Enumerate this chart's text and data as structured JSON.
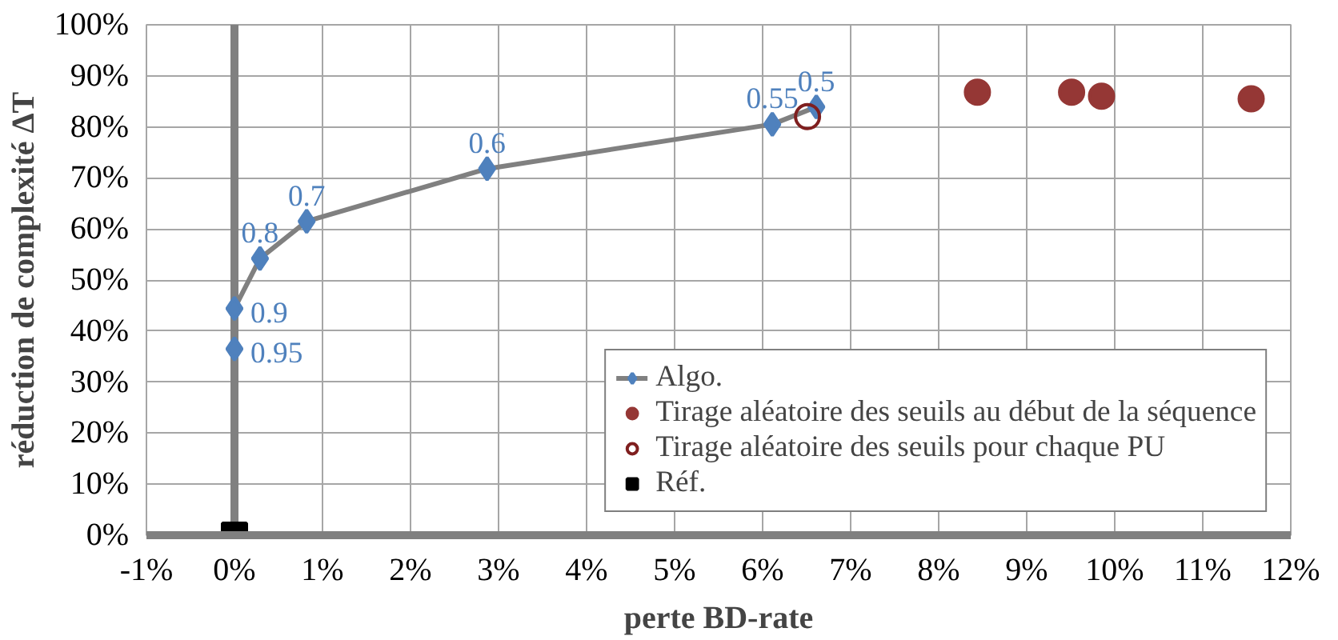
{
  "chart_data": {
    "type": "scatter",
    "xlabel": "perte BD-rate",
    "ylabel": "réduction de complexité ΔT",
    "xlim": [
      -1,
      12
    ],
    "ylim": [
      0,
      100
    ],
    "xticks": [
      {
        "value": -1,
        "label": "-1%"
      },
      {
        "value": 0,
        "label": "0%"
      },
      {
        "value": 1,
        "label": "1%"
      },
      {
        "value": 2,
        "label": "2%"
      },
      {
        "value": 3,
        "label": "3%"
      },
      {
        "value": 4,
        "label": "4%"
      },
      {
        "value": 5,
        "label": "5%"
      },
      {
        "value": 6,
        "label": "6%"
      },
      {
        "value": 7,
        "label": "7%"
      },
      {
        "value": 8,
        "label": "8%"
      },
      {
        "value": 9,
        "label": "9%"
      },
      {
        "value": 10,
        "label": "10%"
      },
      {
        "value": 11,
        "label": "11%"
      },
      {
        "value": 12,
        "label": "12%"
      }
    ],
    "yticks": [
      {
        "value": 0,
        "label": "0%"
      },
      {
        "value": 10,
        "label": "10%"
      },
      {
        "value": 20,
        "label": "20%"
      },
      {
        "value": 30,
        "label": "30%"
      },
      {
        "value": 40,
        "label": "40%"
      },
      {
        "value": 50,
        "label": "50%"
      },
      {
        "value": 60,
        "label": "60%"
      },
      {
        "value": 70,
        "label": "70%"
      },
      {
        "value": 80,
        "label": "80%"
      },
      {
        "value": 90,
        "label": "90%"
      },
      {
        "value": 100,
        "label": "100%"
      }
    ],
    "grid": true,
    "legend": "bottom right",
    "ref_lines": [
      {
        "axis": "x",
        "value": 0,
        "color": "#808080"
      }
    ],
    "series": [
      {
        "name": "Algo.",
        "type": "line",
        "marker": "diamond",
        "color": "#4f81bd",
        "x": [
          0.0,
          0.0,
          0.29,
          0.82,
          2.87,
          6.11,
          6.61
        ],
        "values": [
          36.5,
          44.4,
          54.2,
          61.5,
          71.8,
          80.5,
          83.9
        ]
      },
      {
        "name": "Tirage aléatoire des seuils au début de la séquence",
        "marker": "circle",
        "color": "#953735",
        "x": [
          8.44,
          9.51,
          9.85,
          11.55
        ],
        "values": [
          86.8,
          86.8,
          86.0,
          85.5
        ]
      },
      {
        "name": "Tirage aléatoire des seuils pour chaque PU",
        "marker": "circle_open",
        "color": "#7f1f1f",
        "x": [
          6.51
        ],
        "values": [
          82.0
        ]
      },
      {
        "name": "Réf.",
        "marker": "square",
        "color": "#000000",
        "x": [
          0
        ],
        "values": [
          0
        ]
      }
    ],
    "annotations": [
      {
        "text": "0.95",
        "x": 0.0,
        "y": 36.5
      },
      {
        "text": "0.9",
        "x": 0.0,
        "y": 44.4
      },
      {
        "text": "0.8",
        "x": 0.29,
        "y": 54.2
      },
      {
        "text": "0.7",
        "x": 0.82,
        "y": 61.5
      },
      {
        "text": "0.6",
        "x": 2.87,
        "y": 71.8
      },
      {
        "text": "0.55",
        "x": 6.11,
        "y": 80.5
      },
      {
        "text": "0.5",
        "x": 6.61,
        "y": 83.9
      }
    ]
  }
}
